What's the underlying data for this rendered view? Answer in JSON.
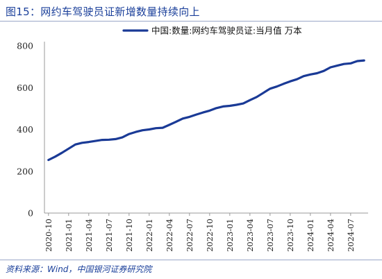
{
  "title": "图15：网约车驾驶员证新增数量持续向上",
  "source": "资料来源：Wind，中国银河证券研究院",
  "colors": {
    "title": "#1a3f9a",
    "series": "#1a3a96",
    "axis": "#999999"
  },
  "chart_data": {
    "type": "line",
    "legend_position": "top-right",
    "grid": false,
    "ylim": [
      0,
      800
    ],
    "yticks": [
      0,
      200,
      400,
      600,
      800
    ],
    "xtick_labels": [
      "2020-10",
      "2021-01",
      "2021-04",
      "2021-07",
      "2021-10",
      "2022-01",
      "2022-04",
      "2022-07",
      "2022-10",
      "2023-01",
      "2023-04",
      "2023-07",
      "2023-10",
      "2024-01",
      "2024-04",
      "2024-07"
    ],
    "x": [
      "2020-10",
      "2020-11",
      "2020-12",
      "2021-01",
      "2021-02",
      "2021-03",
      "2021-04",
      "2021-05",
      "2021-06",
      "2021-07",
      "2021-08",
      "2021-09",
      "2021-10",
      "2021-11",
      "2021-12",
      "2022-01",
      "2022-02",
      "2022-03",
      "2022-04",
      "2022-05",
      "2022-06",
      "2022-07",
      "2022-08",
      "2022-09",
      "2022-10",
      "2022-11",
      "2022-12",
      "2023-01",
      "2023-02",
      "2023-03",
      "2023-04",
      "2023-05",
      "2023-06",
      "2023-07",
      "2023-08",
      "2023-09",
      "2023-10",
      "2023-11",
      "2023-12",
      "2024-01",
      "2024-02",
      "2024-03",
      "2024-04",
      "2024-05",
      "2024-06",
      "2024-07",
      "2024-08",
      "2024-09"
    ],
    "series": [
      {
        "name": "中国:数量:网约车驾驶员证:当月值 万本",
        "values": [
          254,
          270,
          288,
          308,
          328,
          336,
          340,
          345,
          350,
          351,
          354,
          362,
          378,
          388,
          396,
          400,
          406,
          408,
          422,
          437,
          452,
          460,
          471,
          481,
          490,
          502,
          510,
          513,
          518,
          524,
          540,
          555,
          575,
          595,
          605,
          618,
          630,
          640,
          655,
          663,
          669,
          680,
          697,
          705,
          713,
          716,
          727,
          730
        ]
      }
    ]
  }
}
